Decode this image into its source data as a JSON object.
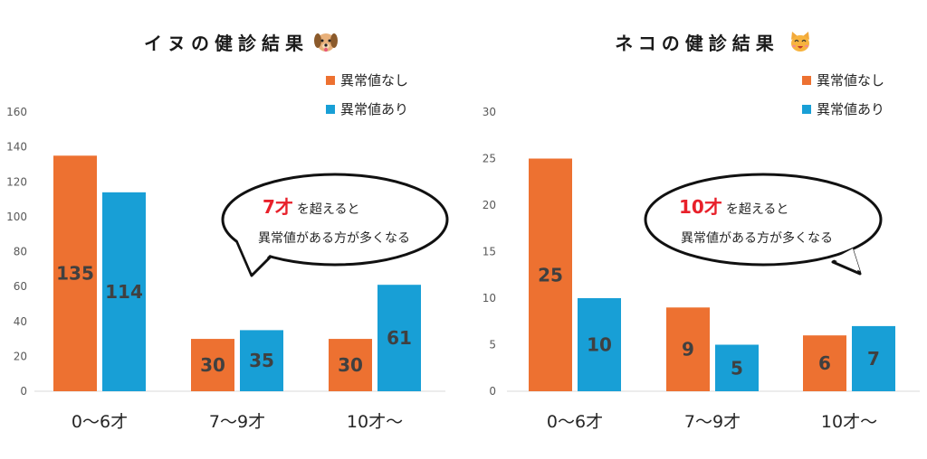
{
  "colors": {
    "orange": "#ED7131",
    "blue": "#189FD6",
    "accent_red": "#E8202A",
    "axis": "#D9D9D9"
  },
  "chart_data": [
    {
      "type": "bar",
      "title": "イヌの健診結果",
      "title_icon": "dog-face-emoji",
      "categories": [
        "0〜6才",
        "7〜9才",
        "10才〜"
      ],
      "series": [
        {
          "name": "異常値なし",
          "values": [
            135,
            30,
            30
          ]
        },
        {
          "name": "異常値あり",
          "values": [
            114,
            35,
            61
          ]
        }
      ],
      "ylim": [
        0,
        160
      ],
      "yticks": [
        0,
        20,
        40,
        60,
        80,
        100,
        120,
        140,
        160
      ],
      "grid": false,
      "legend": "top-right",
      "data_labels": true,
      "callout": {
        "accent": "7才",
        "line1_rest": "を超えると",
        "line2": "異常値がある方が多くなる"
      }
    },
    {
      "type": "bar",
      "title": "ネコの健診結果",
      "title_icon": "cat-face-emoji",
      "categories": [
        "0〜6才",
        "7〜9才",
        "10才〜"
      ],
      "series": [
        {
          "name": "異常値なし",
          "values": [
            25,
            9,
            6
          ]
        },
        {
          "name": "異常値あり",
          "values": [
            10,
            5,
            7
          ]
        }
      ],
      "ylim": [
        0,
        30
      ],
      "yticks": [
        0,
        5,
        10,
        15,
        20,
        25,
        30
      ],
      "grid": false,
      "legend": "top-right",
      "data_labels": true,
      "callout": {
        "accent": "10才",
        "line1_rest": "を超えると",
        "line2": "異常値がある方が多くなる"
      }
    }
  ]
}
